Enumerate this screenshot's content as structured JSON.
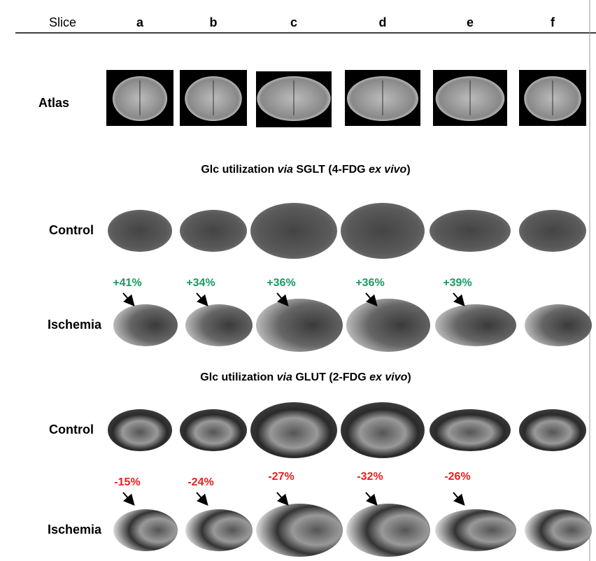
{
  "header": {
    "label": "Slice",
    "columns": [
      "a",
      "b",
      "c",
      "d",
      "e",
      "f"
    ]
  },
  "atlas": {
    "label": "Atlas"
  },
  "sections": [
    {
      "title": [
        "Glc utilization ",
        "via",
        " SGLT (4-FDG ",
        "ex vivo",
        ")"
      ],
      "control": "Control",
      "ischemia": "Ischemia",
      "changes": [
        "+41%",
        "+34%",
        "+36%",
        "+36%",
        "+39%"
      ]
    },
    {
      "title": [
        "Glc utilization ",
        "via",
        " GLUT (2-FDG ",
        "ex vivo",
        ")"
      ],
      "control": "Control",
      "ischemia": "Ischemia",
      "changes": [
        "-15%",
        "-24%",
        "-27%",
        "-32%",
        "-26%"
      ]
    }
  ]
}
